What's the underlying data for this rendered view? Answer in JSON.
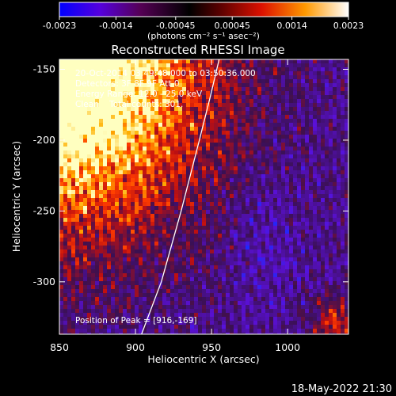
{
  "chart_data": {
    "type": "heatmap",
    "title": "Reconstructed RHESSI Image",
    "xlabel": "Heliocentric X (arcsec)",
    "ylabel": "Heliocentric Y (arcsec)",
    "xlim": [
      850,
      1040
    ],
    "ylim": [
      -337,
      -143
    ],
    "x_ticks": [
      "850",
      "900",
      "950",
      "1000"
    ],
    "x_tick_values": [
      850,
      900,
      950,
      1000
    ],
    "y_ticks": [
      "-150",
      "-200",
      "-250",
      "-300"
    ],
    "y_tick_values": [
      -150,
      -200,
      -250,
      -300
    ],
    "colorbar": {
      "range": [
        -0.0023,
        0.0023
      ],
      "tick_labels": [
        "-0.0023",
        "-0.0014",
        "-0.00045",
        "0.00045",
        "0.0014",
        "0.0023"
      ],
      "tick_values": [
        -0.0023,
        -0.0014,
        -0.00045,
        0.00045,
        0.0014,
        0.0023
      ],
      "unit_label": "(photons cm⁻² s⁻¹ asec⁻²)",
      "colors": [
        "#0000ff",
        "#6600cc",
        "#330033",
        "#000000",
        "#990000",
        "#ff3300",
        "#ffcc00",
        "#ffffff"
      ]
    },
    "annotations": [
      "20-Oct-2014 03:49:48.000 to 03:50:36.000",
      "Detectors: 3F 8F 9F Att 0",
      "Energy Range: 12.0 - 25.0 keV",
      "Clean    Total counts: 301.",
      "Position of Peak = [916,-169]"
    ],
    "limb_line": {
      "x": [
        904,
        917,
        930,
        942,
        949,
        955
      ],
      "y": [
        -337,
        -300,
        -250,
        -200,
        -170,
        -143
      ]
    },
    "peak": [
      916,
      -169
    ],
    "grid": false
  },
  "footer": {
    "timestamp": "18-May-2022 21:30"
  }
}
